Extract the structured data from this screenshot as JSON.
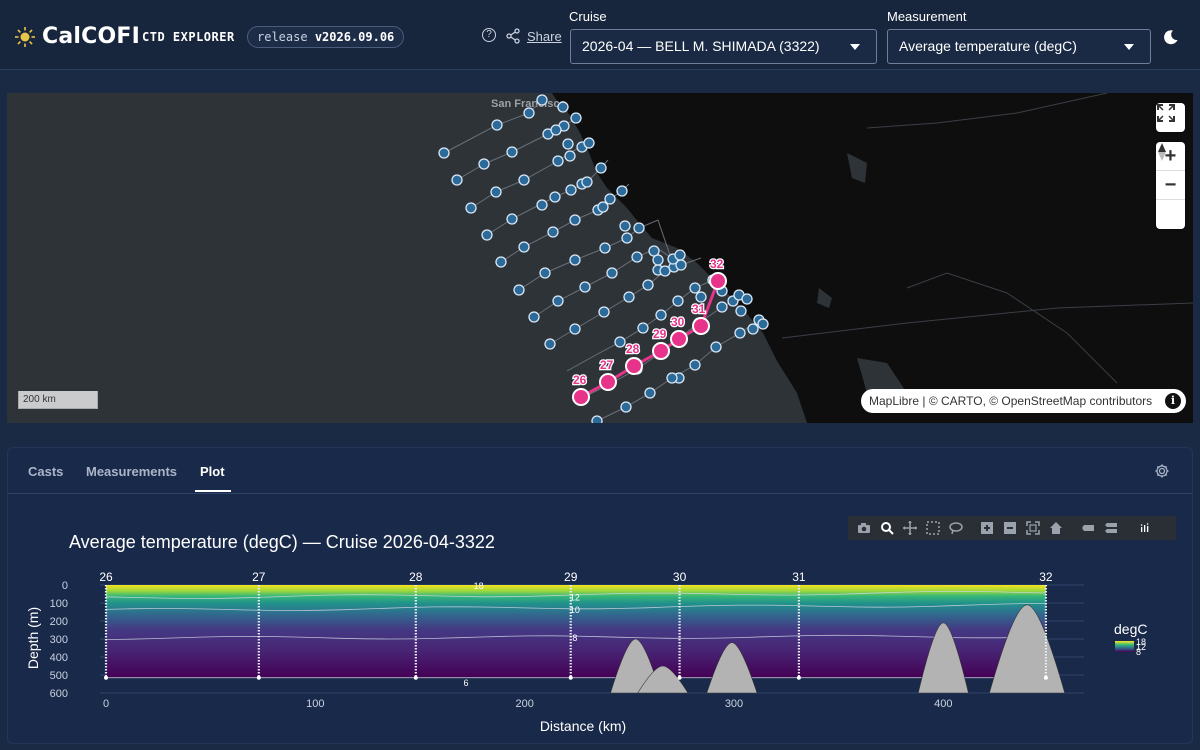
{
  "app": {
    "name": "CalCOFI",
    "subtitle": "CTD EXPLORER",
    "release_prefix": "release",
    "release_version": "v2026.09.06",
    "help_icon": "question-circle-icon",
    "share_label": "Share"
  },
  "controls": {
    "cruise_label": "Cruise",
    "cruise_value": "2026-04 — BELL M. SHIMADA (3322)",
    "measurement_label": "Measurement",
    "measurement_value": "Average temperature (degC)"
  },
  "map": {
    "city_label": "San Francisco",
    "scale_label": "200 km",
    "attribution": {
      "maplibre": "MapLibre",
      "sep": " | © ",
      "carto": "CARTO",
      "sep2": ", © ",
      "osm": "OpenStreetMap",
      "contributors": " contributors"
    },
    "highlighted_stations": [
      "26",
      "27",
      "28",
      "29",
      "30",
      "31",
      "32"
    ],
    "track_color": "#e8338a",
    "station_color": "#5aa9e6"
  },
  "tabs": [
    {
      "label": "Casts",
      "active": false
    },
    {
      "label": "Measurements",
      "active": false
    },
    {
      "label": "Plot",
      "active": true
    }
  ],
  "plot": {
    "title": "Average temperature (degC) — Cruise 2026-04-3322",
    "xlabel": "Distance (km)",
    "ylabel": "Depth (m)",
    "colorbar_title": "degC",
    "colorbar_ticks": [
      "18",
      "12",
      "8"
    ],
    "contour_labels": [
      "18",
      "12",
      "10",
      "8",
      "6"
    ]
  },
  "chart_data": {
    "type": "heatmap",
    "title": "Average temperature (degC) — Cruise 2026-04-3322",
    "xlabel": "Distance (km)",
    "ylabel": "Depth (m)",
    "xlim": [
      0,
      450
    ],
    "ylim": [
      600,
      0
    ],
    "x_ticks": [
      0,
      100,
      200,
      300,
      400
    ],
    "y_ticks": [
      0,
      100,
      200,
      300,
      400,
      500,
      600
    ],
    "stations": [
      {
        "name": "26",
        "distance_km": 0
      },
      {
        "name": "27",
        "distance_km": 73
      },
      {
        "name": "28",
        "distance_km": 148
      },
      {
        "name": "29",
        "distance_km": 222
      },
      {
        "name": "30",
        "distance_km": 274
      },
      {
        "name": "31",
        "distance_km": 331
      },
      {
        "name": "32",
        "distance_km": 449
      }
    ],
    "max_cast_depth_m": 515,
    "contours": [
      {
        "value": 6,
        "label_x_km": 172,
        "label_depth_m": 545
      },
      {
        "value": 8,
        "label_x_km": 224,
        "label_depth_m": 295
      },
      {
        "value": 10,
        "label_x_km": 224,
        "label_depth_m": 140
      },
      {
        "value": 12,
        "label_x_km": 224,
        "label_depth_m": 70
      },
      {
        "value": 18,
        "label_x_km": 178,
        "label_depth_m": 5
      }
    ],
    "bathymetry_peaks": [
      {
        "x_km": 253,
        "top_depth_m": 300
      },
      {
        "x_km": 266,
        "top_depth_m": 450
      },
      {
        "x_km": 299,
        "top_depth_m": 320
      },
      {
        "x_km": 400,
        "top_depth_m": 210
      },
      {
        "x_km": 440,
        "top_depth_m": 110
      }
    ],
    "colorscale": "viridis",
    "color_range": [
      5,
      18
    ]
  }
}
